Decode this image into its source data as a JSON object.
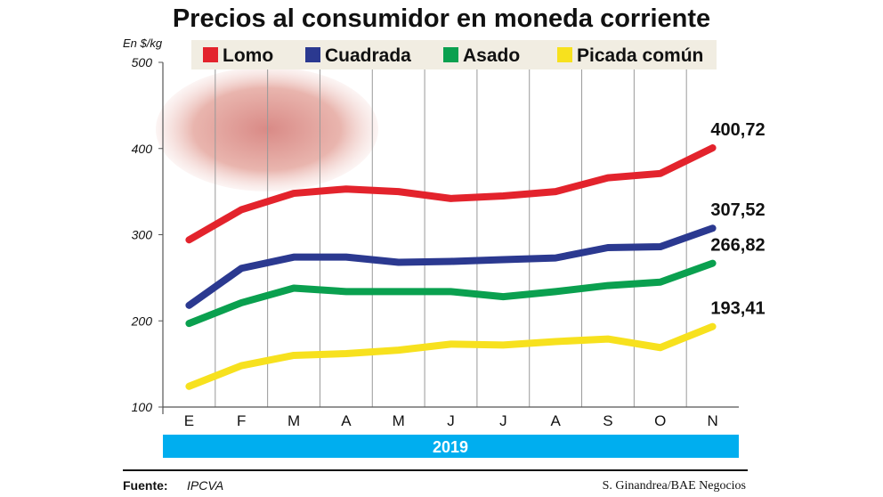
{
  "chart_data": {
    "type": "line",
    "title": "Precios al consumidor en moneda corriente",
    "ylabel": "En $/kg",
    "xlabel": "2019",
    "categories": [
      "E",
      "F",
      "M",
      "A",
      "M",
      "J",
      "J",
      "A",
      "S",
      "O",
      "N"
    ],
    "yticks": [
      100,
      200,
      300,
      400,
      500
    ],
    "ylim": [
      100,
      500
    ],
    "grid": "vertical",
    "legend_placement": "top",
    "series": [
      {
        "name": "Lomo",
        "color": "#e3232c",
        "values": [
          294,
          329,
          348,
          353,
          350,
          342,
          345,
          350,
          366,
          371,
          400.72
        ],
        "end_label": "400,72"
      },
      {
        "name": "Cuadrada",
        "color": "#2b3990",
        "values": [
          218,
          261,
          274,
          274,
          268,
          269,
          271,
          273,
          285,
          286,
          307.52
        ],
        "end_label": "307,52"
      },
      {
        "name": "Asado",
        "color": "#0aa04f",
        "values": [
          197,
          221,
          238,
          234,
          234,
          234,
          228,
          234,
          241,
          245,
          266.82
        ],
        "end_label": "266,82"
      },
      {
        "name": "Picada común",
        "color": "#f7e11e",
        "values": [
          124,
          148,
          160,
          162,
          166,
          173,
          172,
          176,
          179,
          169,
          193.41
        ],
        "end_label": "193,41"
      }
    ]
  },
  "year_bar_color": "#00aeef",
  "footer": {
    "source_label": "Fuente:",
    "source_value": "IPCVA",
    "credit": "S. Ginandrea/BAE Negocios"
  }
}
